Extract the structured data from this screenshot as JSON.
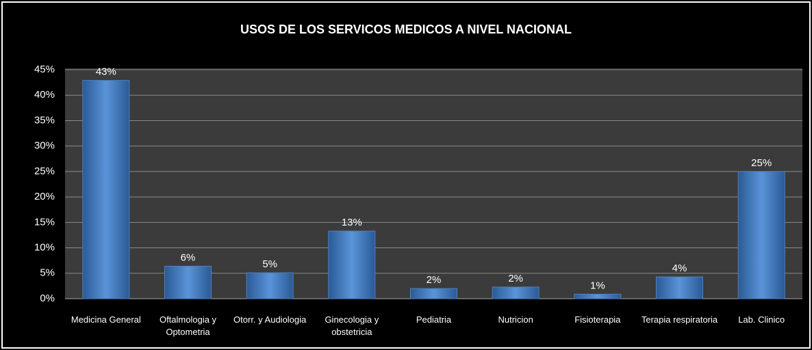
{
  "chart_data": {
    "type": "bar",
    "title": "USOS DE LOS SERVICOS MEDICOS A NIVEL NACIONAL",
    "categories": [
      "Medicina General",
      "Oftalmologia y\nOptometria",
      "Otorr. y Audiologia",
      "Ginecologia y\nobstetricia",
      "Pediatria",
      "Nutricion",
      "Fisioterapia",
      "Terapia respiratoria",
      "Lab.   Clinico"
    ],
    "values": [
      42.9,
      6.4,
      5.1,
      13.3,
      2.0,
      2.3,
      0.9,
      4.3,
      25.0
    ],
    "value_labels": [
      "43%",
      "6%",
      "5%",
      "13%",
      "2%",
      "2%",
      "1%",
      "4%",
      "25%"
    ],
    "color": "#4f81bd",
    "ylim": [
      0,
      45
    ],
    "yticks": [
      {
        "value": 0,
        "label": "0%"
      },
      {
        "value": 5,
        "label": "5%"
      },
      {
        "value": 10,
        "label": "10%"
      },
      {
        "value": 15,
        "label": "15%"
      },
      {
        "value": 20,
        "label": "20%"
      },
      {
        "value": 25,
        "label": "25%"
      },
      {
        "value": 30,
        "label": "30%"
      },
      {
        "value": 35,
        "label": "35%"
      },
      {
        "value": 40,
        "label": "40%"
      },
      {
        "value": 45,
        "label": "45%"
      }
    ],
    "grid": true
  }
}
